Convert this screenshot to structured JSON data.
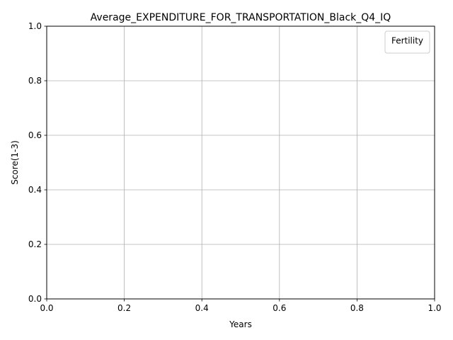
{
  "chart_data": {
    "type": "line",
    "title": "Average_EXPENDITURE_FOR_TRANSPORTATION_Black_Q4_IQ",
    "xlabel": "Years",
    "ylabel": "Score(1-3)",
    "xlim": [
      0.0,
      1.0
    ],
    "ylim": [
      0.0,
      1.0
    ],
    "x_ticks": [
      "0.0",
      "0.2",
      "0.4",
      "0.6",
      "0.8",
      "1.0"
    ],
    "y_ticks": [
      "0.0",
      "0.2",
      "0.4",
      "0.6",
      "0.8",
      "1.0"
    ],
    "grid": true,
    "legend": {
      "title": "Fertility",
      "position": "top-right",
      "entries": []
    },
    "series": []
  },
  "colors": {
    "grid": "#b0b0b0",
    "axis": "#000000",
    "legend_border": "#cccccc"
  }
}
